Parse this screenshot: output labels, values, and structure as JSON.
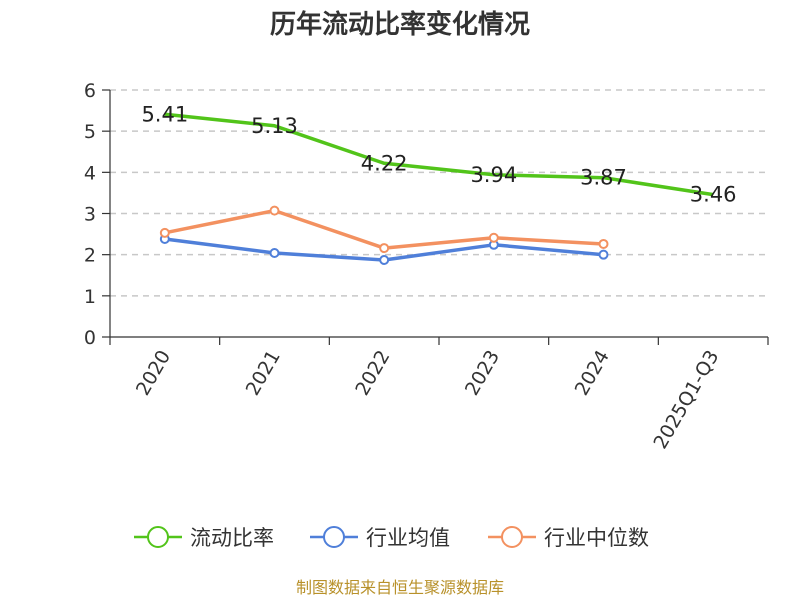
{
  "chart_data": {
    "type": "line",
    "title": "历年流动比率变化情况",
    "categories": [
      "2020",
      "2021",
      "2022",
      "2023",
      "2024",
      "2025Q1-Q3"
    ],
    "ylim": [
      0,
      6
    ],
    "yticks": [
      0,
      1,
      2,
      3,
      4,
      5,
      6
    ],
    "grid": true,
    "legend_position": "bottom",
    "series": [
      {
        "name": "流动比率",
        "color": "#52c41a",
        "values": [
          5.41,
          5.13,
          4.22,
          3.94,
          3.87,
          3.46
        ],
        "labels": [
          "5.41",
          "5.13",
          "4.22",
          "3.94",
          "3.87",
          "3.46"
        ]
      },
      {
        "name": "行业均值",
        "color": "#4f7fd9",
        "values": [
          2.38,
          2.04,
          1.87,
          2.24,
          2.0,
          null
        ]
      },
      {
        "name": "行业中位数",
        "color": "#f39160",
        "values": [
          2.53,
          3.07,
          2.16,
          2.41,
          2.26,
          null
        ]
      }
    ],
    "source": "制图数据来自恒生聚源数据库"
  }
}
